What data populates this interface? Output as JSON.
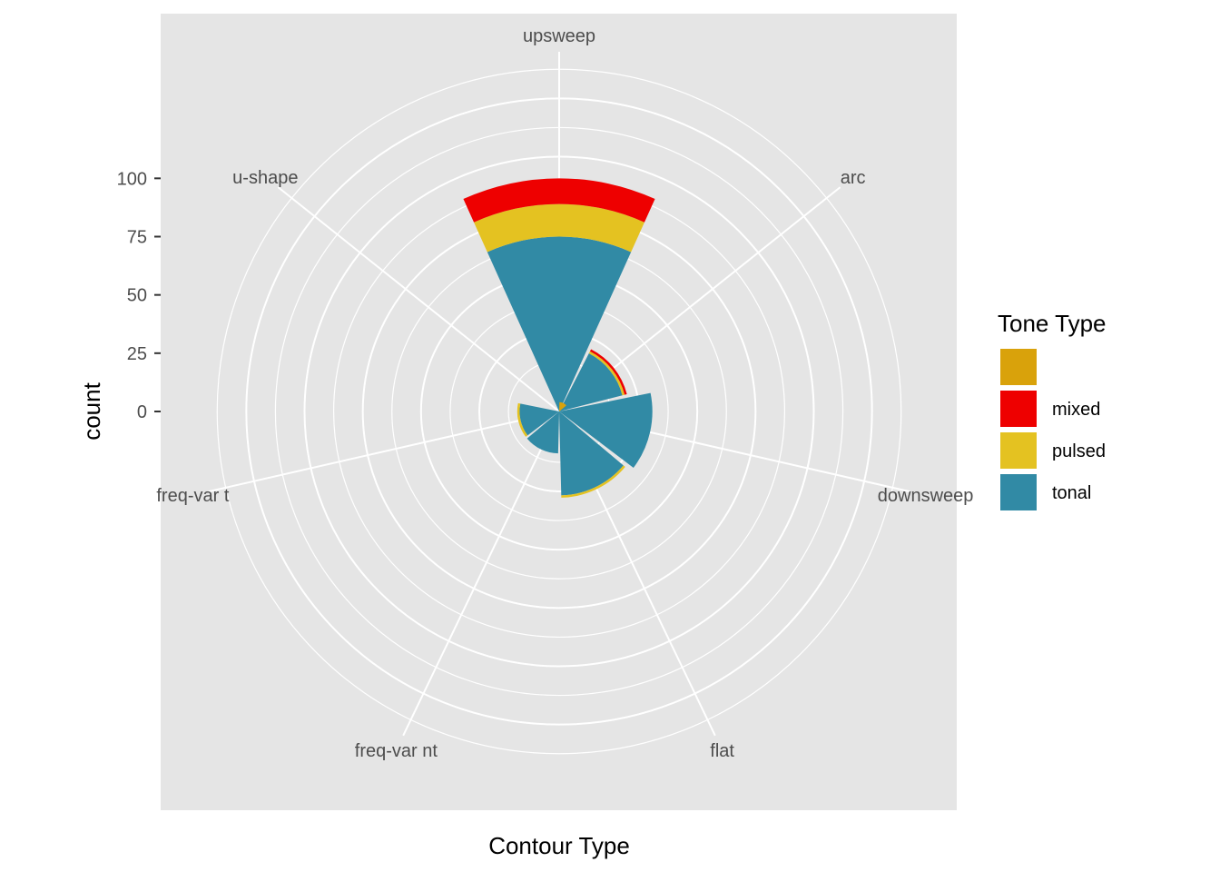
{
  "chart_data": {
    "type": "bar",
    "coord": "polar",
    "categories": [
      "upsweep",
      "arc",
      "downsweep",
      "flat",
      "freq-var nt",
      "freq-var t",
      "u-shape"
    ],
    "series": [
      {
        "name": "",
        "values": [
          0,
          0,
          0,
          0,
          0,
          0,
          0
        ],
        "color": "#d9a20b"
      },
      {
        "name": "mixed",
        "values": [
          11,
          1,
          0,
          0,
          0,
          0,
          0
        ],
        "color": "#ee0000"
      },
      {
        "name": "pulsed",
        "values": [
          14,
          1,
          0,
          1,
          0,
          1,
          0
        ],
        "color": "#e4c221"
      },
      {
        "name": "tonal",
        "values": [
          75,
          28,
          40,
          36,
          18,
          17,
          0
        ],
        "color": "#318aa5"
      }
    ],
    "extra_bars": [
      {
        "category_position": 0.5,
        "series": "",
        "value": 4
      }
    ],
    "xlabel": "Contour Type",
    "ylabel": "count",
    "ylim": [
      -25,
      120
    ],
    "yticks": [
      0,
      25,
      50,
      75,
      100
    ],
    "legend": {
      "title": "Tone Type",
      "position": "right"
    },
    "grid": true
  }
}
